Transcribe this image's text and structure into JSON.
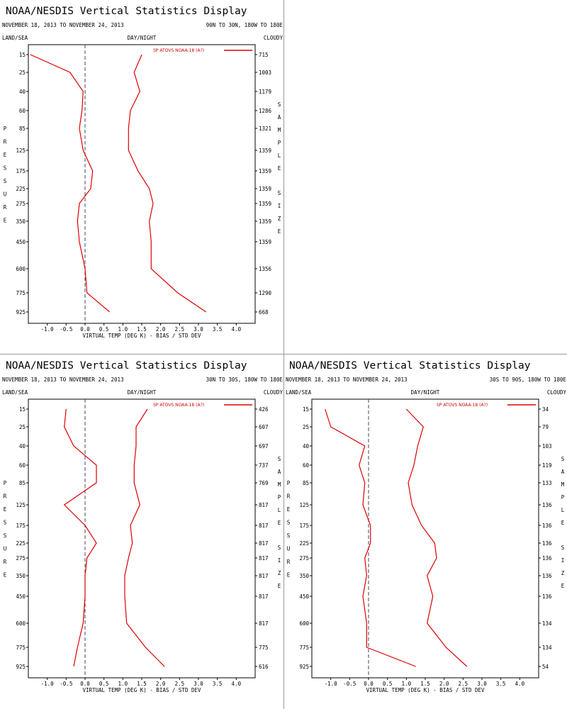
{
  "colors": {
    "line": "#dd0000",
    "axis": "#000000",
    "zero": "#444466"
  },
  "chart_data": [
    {
      "type": "line",
      "title": "NOAA/NESDIS Vertical Statistics Display",
      "date_range": "NOVEMBER 18, 2013 TO NOVEMBER 24, 2013",
      "region": "90N TO 30N, 180W TO 180E",
      "label_landsea": "LAND/SEA",
      "label_daynight": "DAY/NIGHT",
      "label_cloudy": "CLOUDY",
      "ylabel": "PRESSURE",
      "right_label": "SAMPLE SIZE",
      "xlabel": "VIRTUAL TEMP (DEG K) - BIAS / STD DEV",
      "xlim": [
        -1.5,
        4.5
      ],
      "xticks": [
        "-1.0",
        "-0.5",
        "0.0",
        "0.5",
        "1.0",
        "1.5",
        "2.0",
        "2.5",
        "3.0",
        "3.5",
        "4.0"
      ],
      "pressure_levels": [
        "15",
        "25",
        "40",
        "60",
        "85",
        "125",
        "175",
        "225",
        "275",
        "350",
        "450",
        "600",
        "775",
        "925"
      ],
      "sample_size": [
        "715",
        "1003",
        "1179",
        "1286",
        "1321",
        "1359",
        "1359",
        "1359",
        "1359",
        "1359",
        "1359",
        "1356",
        "1290",
        "668"
      ],
      "legend": "SP ATOVS NOAA-18 (A?)",
      "series": [
        {
          "name": "bias",
          "values": [
            -1.45,
            -0.4,
            -0.05,
            -0.08,
            -0.15,
            -0.05,
            0.2,
            0.15,
            -0.15,
            -0.2,
            -0.15,
            0.0,
            0.05,
            0.65
          ]
        },
        {
          "name": "std dev",
          "values": [
            1.5,
            1.3,
            1.45,
            1.2,
            1.15,
            1.15,
            1.4,
            1.7,
            1.8,
            1.7,
            1.75,
            1.75,
            2.45,
            3.2
          ]
        }
      ]
    },
    {
      "type": "line",
      "title": "NOAA/NESDIS Vertical Statistics Display",
      "date_range": "NOVEMBER 18, 2013 TO NOVEMBER 24, 2013",
      "region": "30N TO 30S, 180W TO 180E",
      "label_landsea": "LAND/SEA",
      "label_daynight": "DAY/NIGHT",
      "label_cloudy": "CLOUDY",
      "ylabel": "PRESSURE",
      "right_label": "SAMPLE SIZE",
      "xlabel": "VIRTUAL TEMP (DEG K) - BIAS / STD DEV",
      "xlim": [
        -1.5,
        4.5
      ],
      "xticks": [
        "-1.0",
        "-0.5",
        "0.0",
        "0.5",
        "1.0",
        "1.5",
        "2.0",
        "2.5",
        "3.0",
        "3.5",
        "4.0"
      ],
      "pressure_levels": [
        "15",
        "25",
        "40",
        "60",
        "85",
        "125",
        "175",
        "225",
        "275",
        "350",
        "450",
        "600",
        "775",
        "925"
      ],
      "sample_size": [
        "426",
        "607",
        "697",
        "737",
        "769",
        "817",
        "817",
        "817",
        "817",
        "817",
        "817",
        "817",
        "775",
        "616"
      ],
      "legend": "SP ATOVS NOAA-18 (A?)",
      "series": [
        {
          "name": "bias",
          "values": [
            -0.5,
            -0.55,
            -0.3,
            0.3,
            0.3,
            -0.55,
            0.0,
            0.3,
            0.05,
            0.0,
            0.0,
            -0.05,
            -0.2,
            -0.3
          ]
        },
        {
          "name": "std dev",
          "values": [
            1.65,
            1.35,
            1.35,
            1.3,
            1.3,
            1.45,
            1.2,
            1.25,
            1.15,
            1.05,
            1.05,
            1.1,
            1.6,
            2.1
          ]
        }
      ]
    },
    {
      "type": "line",
      "title": "NOAA/NESDIS Vertical Statistics Display",
      "date_range": "NOVEMBER 18, 2013 TO NOVEMBER 24, 2013",
      "region": "30S TO 90S, 180W TO 180E",
      "label_landsea": "LAND/SEA",
      "label_daynight": "DAY/NIGHT",
      "label_cloudy": "CLOUDY",
      "ylabel": "PRESSURE",
      "right_label": "SAMPLE SIZE",
      "xlabel": "VIRTUAL TEMP (DEG K) - BIAS / STD DEV",
      "xlim": [
        -1.5,
        4.5
      ],
      "xticks": [
        "-1.0",
        "-0.5",
        "0.0",
        "0.5",
        "1.0",
        "1.5",
        "2.0",
        "2.5",
        "3.0",
        "3.5",
        "4.0"
      ],
      "pressure_levels": [
        "15",
        "25",
        "40",
        "60",
        "85",
        "125",
        "175",
        "225",
        "275",
        "350",
        "450",
        "600",
        "775",
        "925"
      ],
      "sample_size": [
        "34",
        "79",
        "103",
        "119",
        "133",
        "136",
        "136",
        "136",
        "136",
        "136",
        "136",
        "134",
        "134",
        "54"
      ],
      "legend": "SP ATOVS NOAA-18 (A?)",
      "series": [
        {
          "name": "bias",
          "values": [
            -1.15,
            -1.0,
            -0.1,
            -0.25,
            -0.1,
            -0.15,
            0.05,
            0.05,
            -0.1,
            -0.05,
            -0.15,
            -0.05,
            -0.05,
            1.25
          ]
        },
        {
          "name": "std dev",
          "values": [
            1.0,
            1.45,
            1.3,
            1.2,
            1.05,
            1.15,
            1.4,
            1.75,
            1.8,
            1.55,
            1.7,
            1.55,
            2.05,
            2.6
          ]
        }
      ]
    }
  ]
}
